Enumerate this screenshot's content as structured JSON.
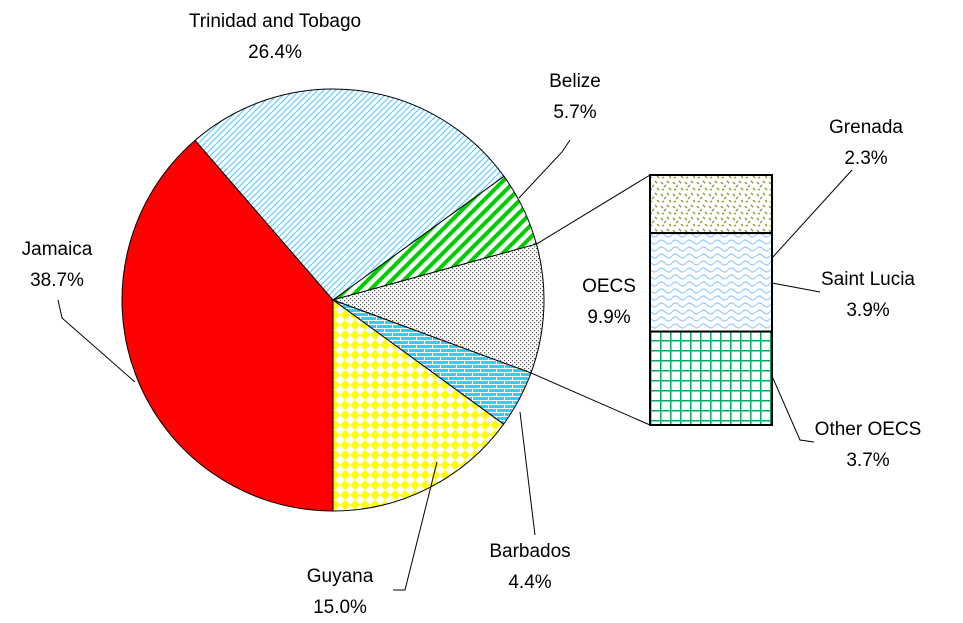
{
  "chart_data": {
    "type": "pie",
    "categories": [
      "Jamaica",
      "Trinidad and Tobago",
      "Belize",
      "OECS",
      "Barbados",
      "Guyana"
    ],
    "values": [
      38.7,
      26.4,
      5.7,
      9.9,
      4.4,
      15.0
    ],
    "value_labels": [
      "38.7%",
      "26.4%",
      "5.7%",
      "9.9%",
      "4.4%",
      "15.0%"
    ],
    "colors": [
      "#ff0000",
      "#66ccff",
      "#00cc00",
      "#555555",
      "#33ccff",
      "#ffff00"
    ],
    "fills": [
      "solid",
      "fine-diagonal",
      "wide-diagonal",
      "dots",
      "bricks",
      "diamonds"
    ],
    "breakdown": {
      "of": "OECS",
      "categories": [
        "Grenada",
        "Saint Lucia",
        "Other OECS"
      ],
      "values": [
        2.3,
        3.9,
        3.7
      ],
      "value_labels": [
        "2.3%",
        "3.9%",
        "3.7%"
      ],
      "colors": [
        "#999933",
        "#99ccff",
        "#00aa66"
      ],
      "fills": [
        "confetti",
        "waves",
        "grid"
      ]
    }
  }
}
